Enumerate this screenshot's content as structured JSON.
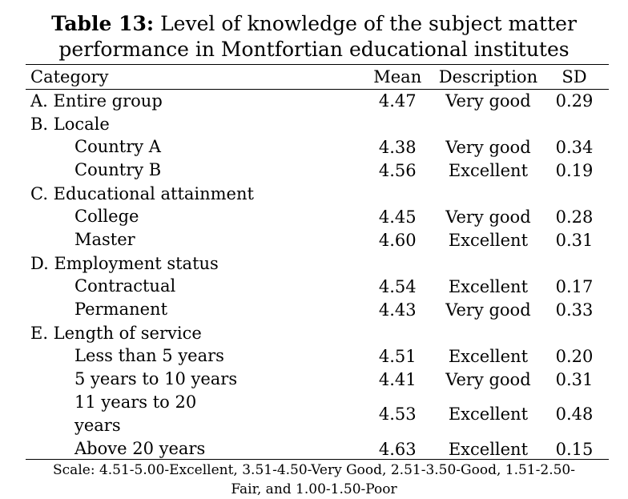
{
  "caption": {
    "label": "Table 13:",
    "line1": "Level of knowledge of the subject matter",
    "line2": "performance in Montfortian educational institutes"
  },
  "headers": {
    "category": "Category",
    "mean": "Mean",
    "description": "Description",
    "sd": "SD"
  },
  "rows": {
    "entire": {
      "category": "A. Entire group",
      "mean": "4.47",
      "description": "Very good",
      "sd": "0.29"
    },
    "locale": {
      "category": "B. Locale"
    },
    "country_a": {
      "category": "Country A",
      "mean": "4.38",
      "description": "Very good",
      "sd": "0.34"
    },
    "country_b": {
      "category": "Country B",
      "mean": "4.56",
      "description": "Excellent",
      "sd": "0.19"
    },
    "education": {
      "category": "C. Educational attainment"
    },
    "college": {
      "category": "College",
      "mean": "4.45",
      "description": "Very good",
      "sd": "0.28"
    },
    "master": {
      "category": "Master",
      "mean": "4.60",
      "description": "Excellent",
      "sd": "0.31"
    },
    "employment": {
      "category": "D. Employment status"
    },
    "contractual": {
      "category": "Contractual",
      "mean": "4.54",
      "description": "Excellent",
      "sd": "0.17"
    },
    "permanent": {
      "category": "Permanent",
      "mean": "4.43",
      "description": "Very good",
      "sd": "0.33"
    },
    "service": {
      "category": "E. Length of service"
    },
    "lt5": {
      "category": "Less than 5 years",
      "mean": "4.51",
      "description": "Excellent",
      "sd": "0.20"
    },
    "y5to10": {
      "category": "5 years to 10 years",
      "mean": "4.41",
      "description": "Very good",
      "sd": "0.31"
    },
    "y11to20": {
      "category_line1": "11 years to 20",
      "category_line2": "years",
      "mean": "4.53",
      "description": "Excellent",
      "sd": "0.48"
    },
    "gt20": {
      "category": "Above 20 years",
      "mean": "4.63",
      "description": "Excellent",
      "sd": "0.15"
    }
  },
  "scale": {
    "line1": "Scale: 4.51-5.00-Excellent, 3.51-4.50-Very Good, 2.51-3.50-Good, 1.51-2.50-",
    "line2": "Fair, and 1.00-1.50-Poor"
  }
}
